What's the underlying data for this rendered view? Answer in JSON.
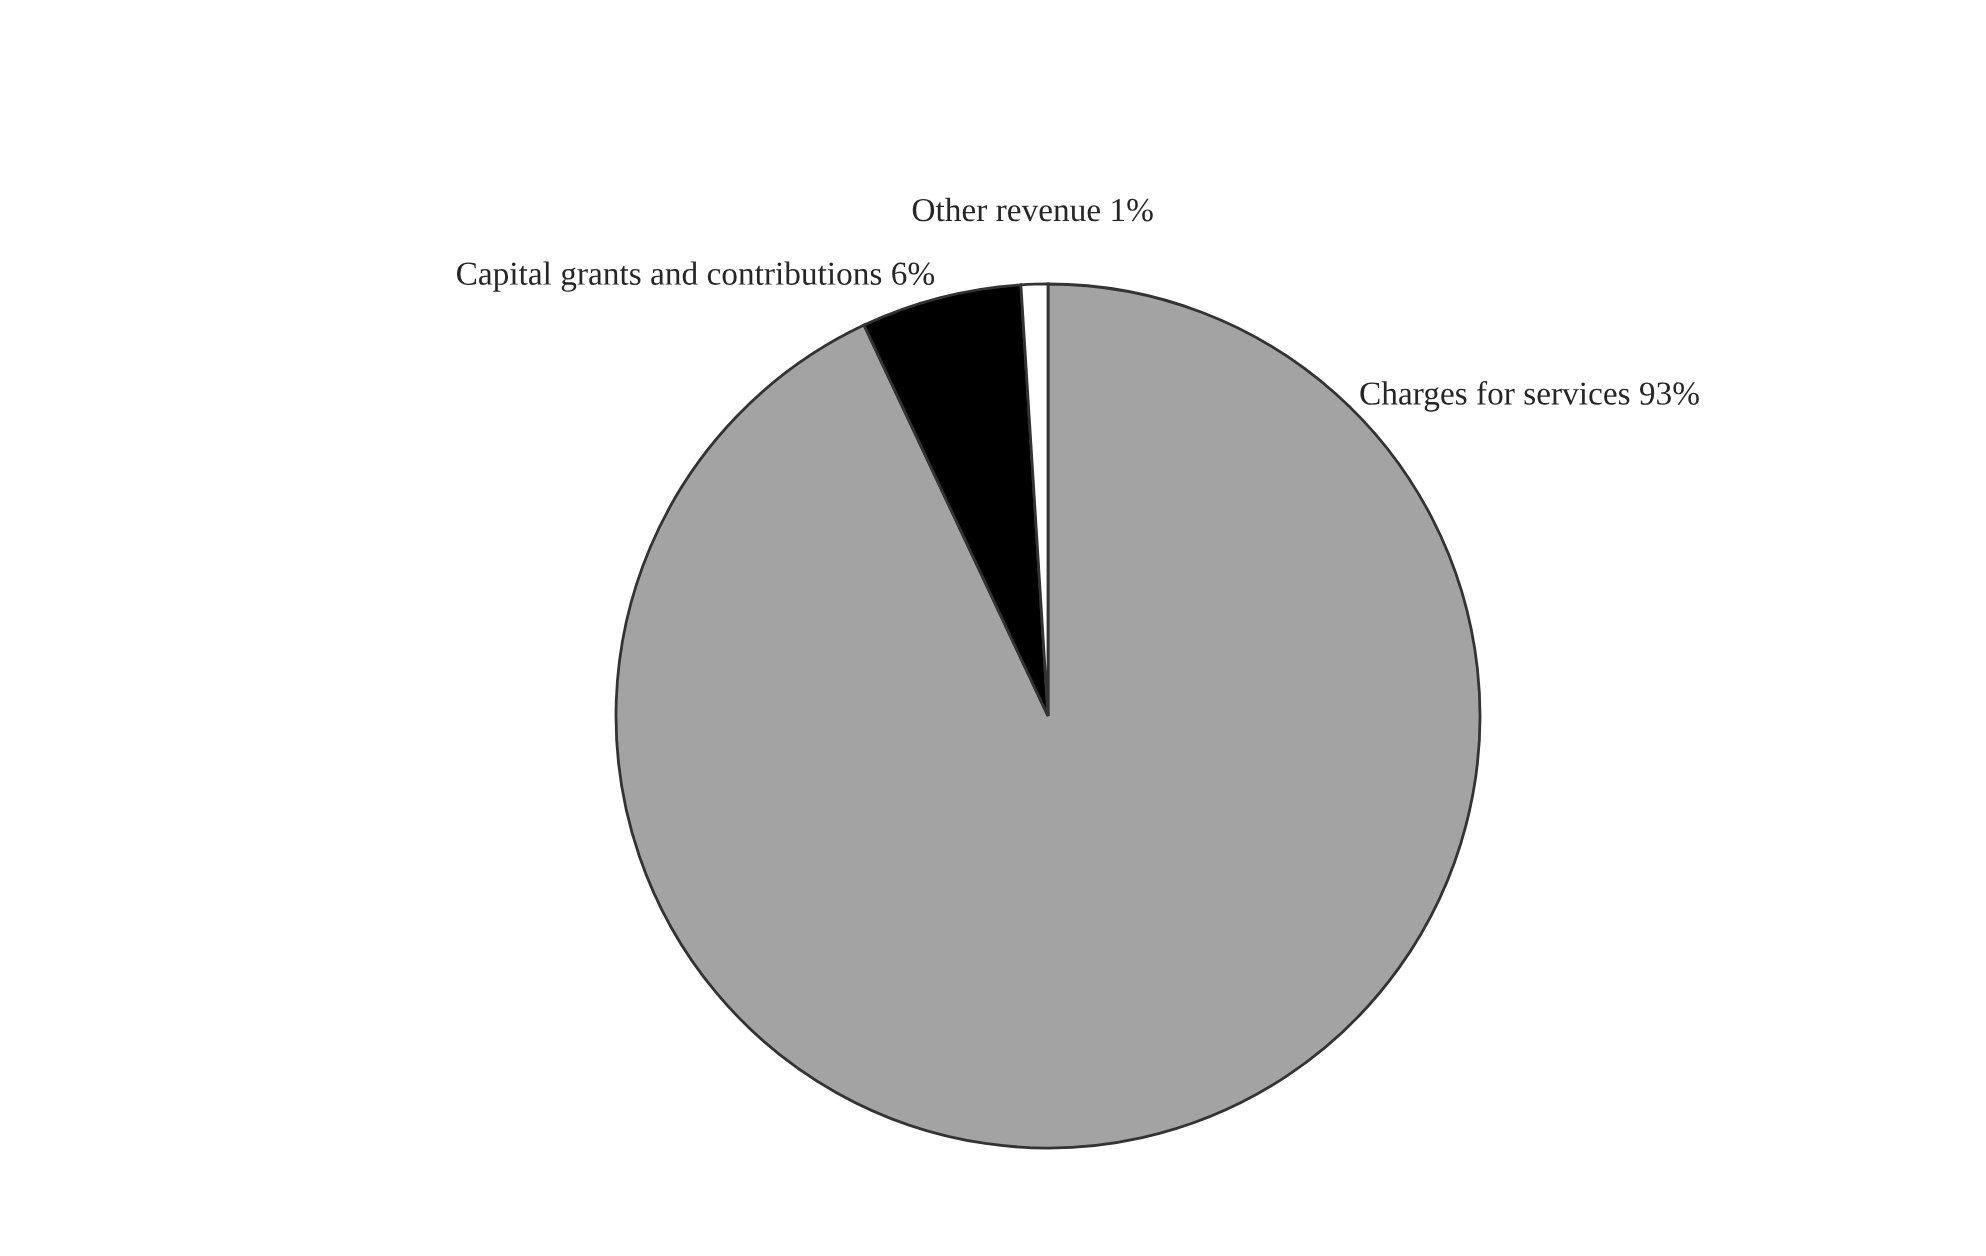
{
  "chart_data": {
    "type": "pie",
    "categories": [
      "Charges for services",
      "Capital grants and contributions",
      "Other revenue"
    ],
    "values": [
      93,
      6,
      1
    ],
    "value_labels": [
      "93%",
      "6%",
      "1%"
    ],
    "colors": [
      "#a3a3a3",
      "#000000",
      "#ffffff"
    ],
    "legend": false
  }
}
